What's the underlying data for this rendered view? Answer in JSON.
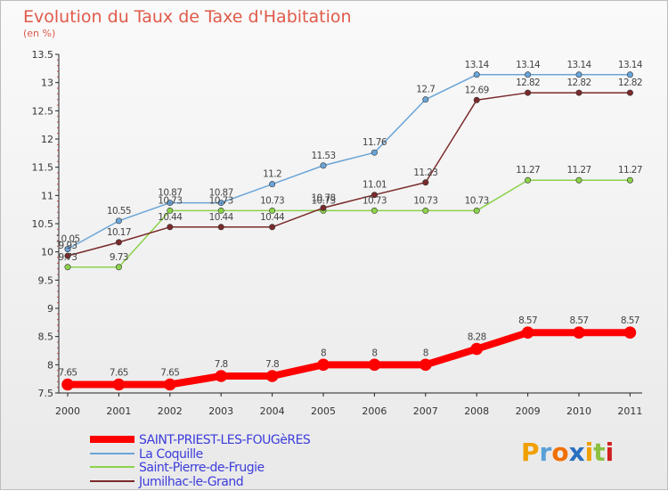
{
  "chart_data": {
    "type": "line",
    "title": "Evolution du Taux de Taxe d'Habitation",
    "subtitle": "(en %)",
    "x": [
      "2000",
      "2001",
      "2002",
      "2003",
      "2004",
      "2005",
      "2006",
      "2007",
      "2008",
      "2009",
      "2010",
      "2011"
    ],
    "ylim": [
      7.5,
      13.5
    ],
    "yticks": [
      "7.5",
      "8",
      "8.5",
      "9",
      "9.5",
      "10",
      "10.5",
      "11",
      "11.5",
      "12",
      "12.5",
      "13",
      "13.5"
    ],
    "grid": false,
    "legend_position": "bottom-left",
    "series": [
      {
        "name": "SAINT-PRIEST-LES-FOUGèRES",
        "color": "#ff0000",
        "width": 8,
        "values": [
          7.65,
          7.65,
          7.65,
          7.8,
          7.8,
          8,
          8,
          8,
          8.28,
          8.57,
          8.57,
          8.57
        ],
        "labels": [
          "7.65",
          "7.65",
          "7.65",
          "7.8",
          "7.8",
          "8",
          "8",
          "8",
          "8.28",
          "8.57",
          "8.57",
          "8.57"
        ]
      },
      {
        "name": "La Coquille",
        "color": "#6aa5d8",
        "width": 1.5,
        "values": [
          10.05,
          10.55,
          10.87,
          10.87,
          11.2,
          11.53,
          11.76,
          12.7,
          13.14,
          13.14,
          13.14,
          13.14
        ],
        "labels": [
          "10.05",
          "10.55",
          "10.87",
          "10.87",
          "11.2",
          "11.53",
          "11.76",
          "12.7",
          "13.14",
          "13.14",
          "13.14",
          "13.14"
        ]
      },
      {
        "name": "Saint-Pierre-de-Frugie",
        "color": "#8cd24a",
        "width": 1.5,
        "values": [
          9.73,
          9.73,
          10.73,
          10.73,
          10.73,
          10.73,
          10.73,
          10.73,
          10.73,
          11.27,
          11.27,
          11.27
        ],
        "labels": [
          "9.73",
          "9.73",
          "10.73",
          "10.73",
          "10.73",
          "10.73",
          "10.73",
          "10.73",
          "10.73",
          "11.27",
          "11.27",
          "11.27"
        ]
      },
      {
        "name": "Jumilhac-le-Grand",
        "color": "#7a2a2a",
        "width": 1.5,
        "values": [
          9.93,
          10.17,
          10.44,
          10.44,
          10.44,
          10.78,
          11.01,
          11.23,
          12.69,
          12.82,
          12.82,
          12.82
        ],
        "labels": [
          "9.93",
          "10.17",
          "10.44",
          "10.44",
          "10.44",
          "10.78",
          "11.01",
          "11.23",
          "12.69",
          "12.82",
          "12.82",
          "12.82"
        ]
      }
    ]
  },
  "branding": {
    "logo_text": "Proxiti"
  }
}
